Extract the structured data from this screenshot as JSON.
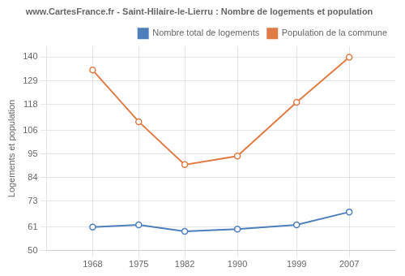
{
  "chart_data": {
    "type": "line",
    "title": "www.CartesFrance.fr - Saint-Hilaire-le-Lierru : Nombre de logements et population",
    "ylabel": "Logements et population",
    "x": [
      1968,
      1975,
      1982,
      1990,
      1999,
      2007
    ],
    "series": [
      {
        "name": "Nombre total de logements",
        "color": "#4e7fba",
        "marker": "circle",
        "values": [
          61,
          62,
          59,
          60,
          62,
          68
        ]
      },
      {
        "name": "Population de la commune",
        "color": "#e07b45",
        "marker": "circle",
        "values": [
          134,
          110,
          90,
          94,
          119,
          140
        ]
      }
    ],
    "xlim": [
      1961,
      2014
    ],
    "xticks": [
      1968,
      1975,
      1982,
      1990,
      1999,
      2007
    ],
    "ylim": [
      50,
      145
    ],
    "yticks": [
      50,
      61,
      73,
      84,
      95,
      106,
      118,
      129,
      140
    ],
    "grid": true,
    "legend": "upper right"
  }
}
